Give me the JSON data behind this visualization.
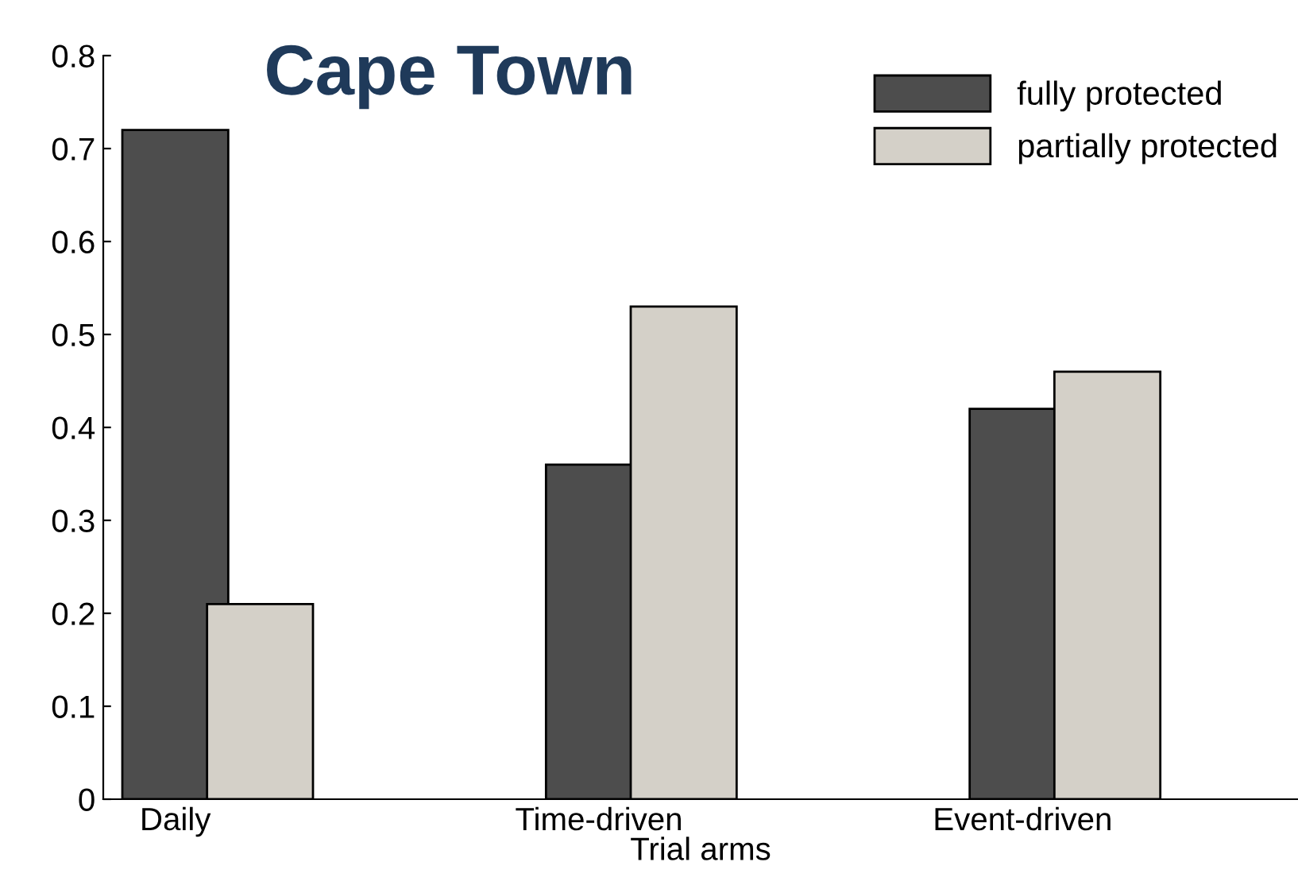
{
  "chart_data": {
    "type": "bar",
    "title": "Cape Town",
    "xlabel": "Trial arms",
    "categories": [
      "Daily",
      "Time-driven",
      "Event-driven"
    ],
    "series": [
      {
        "name": "fully protected",
        "color": "#4d4d4d",
        "values": [
          0.72,
          0.36,
          0.42
        ]
      },
      {
        "name": "partially protected",
        "color": "#d4d0c8",
        "values": [
          0.21,
          0.53,
          0.46
        ]
      }
    ],
    "ylim": [
      0,
      0.8
    ],
    "yticks": [
      0,
      0.1,
      0.2,
      0.3,
      0.4,
      0.5,
      0.6,
      0.7,
      0.8
    ],
    "grid": false,
    "legend": "top right"
  }
}
